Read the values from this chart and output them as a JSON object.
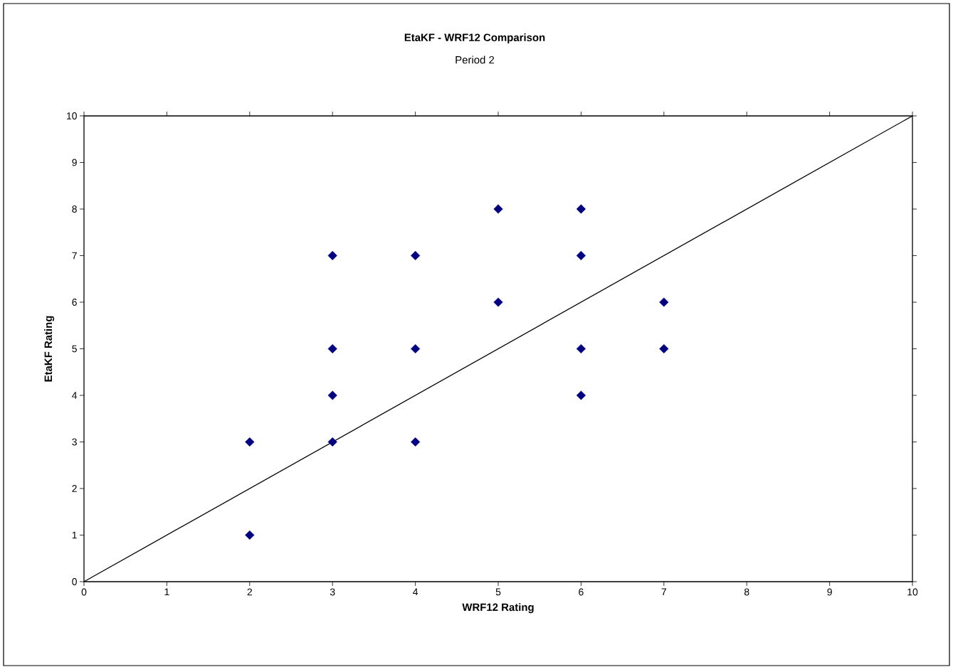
{
  "chart_data": {
    "type": "scatter",
    "title": "EtaKF - WRF12 Comparison",
    "subtitle": "Period 2",
    "xlabel": "WRF12 Rating",
    "ylabel": "EtaKF Rating",
    "xlim": [
      0,
      10
    ],
    "ylim": [
      0,
      10
    ],
    "xticks": [
      0,
      1,
      2,
      3,
      4,
      5,
      6,
      7,
      8,
      9,
      10
    ],
    "yticks": [
      0,
      1,
      2,
      3,
      4,
      5,
      6,
      7,
      8,
      9,
      10
    ],
    "grid": false,
    "marker": "diamond",
    "series": [
      {
        "color": "#000080",
        "x": [
          2,
          2,
          3,
          3,
          3,
          3,
          4,
          4,
          4,
          5,
          5,
          6,
          6,
          6,
          6,
          7,
          7
        ],
        "values": [
          3,
          1,
          7,
          5,
          4,
          3,
          7,
          5,
          3,
          8,
          6,
          8,
          7,
          5,
          4,
          6,
          5
        ]
      },
      {
        "type": "line",
        "color": "#000000",
        "marker": "none",
        "line_style": "solid",
        "x": [
          0,
          10
        ],
        "values": [
          0,
          10
        ]
      }
    ]
  }
}
